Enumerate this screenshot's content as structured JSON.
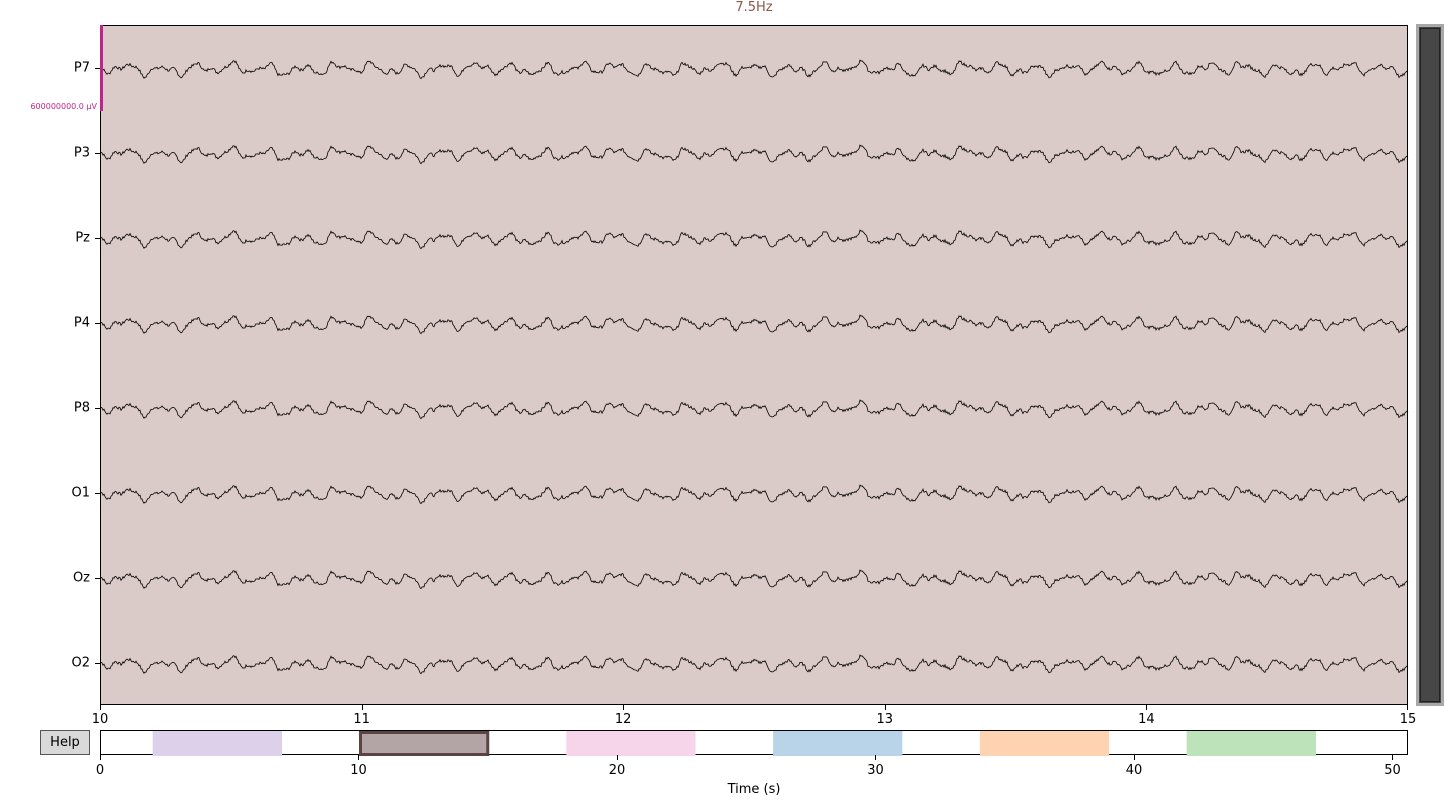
{
  "annotation_title": "7.5Hz",
  "scale_label": "600000000.0 µV",
  "help_label": "Help",
  "colors": {
    "background": "#dbcbc8",
    "annotation_title": "#8c564b",
    "scalebar": "#c0248a",
    "trace": "#000000"
  },
  "chart_data": {
    "type": "line",
    "title": "7.5Hz",
    "xlabel": "Time (s)",
    "channels": [
      "P7",
      "P3",
      "Pz",
      "P4",
      "P8",
      "O1",
      "Oz",
      "O2"
    ],
    "time_range": [
      10,
      15
    ],
    "time_ticks": [
      "10",
      "11",
      "12",
      "13",
      "14",
      "15"
    ],
    "overview": {
      "range": [
        0,
        50.6
      ],
      "ticks": [
        "0",
        "10",
        "20",
        "30",
        "40",
        "50"
      ],
      "current_view": [
        10,
        15
      ],
      "annotations": [
        {
          "start": 2,
          "end": 7,
          "color": "#dcd0ea"
        },
        {
          "start": 18,
          "end": 23,
          "color": "#f6d5ea"
        },
        {
          "start": 26,
          "end": 31,
          "color": "#b9d3e8"
        },
        {
          "start": 34,
          "end": 39,
          "color": "#fdd3b2"
        },
        {
          "start": 42,
          "end": 47,
          "color": "#bde3bb"
        }
      ]
    },
    "view_color": "#b3a5a5"
  }
}
